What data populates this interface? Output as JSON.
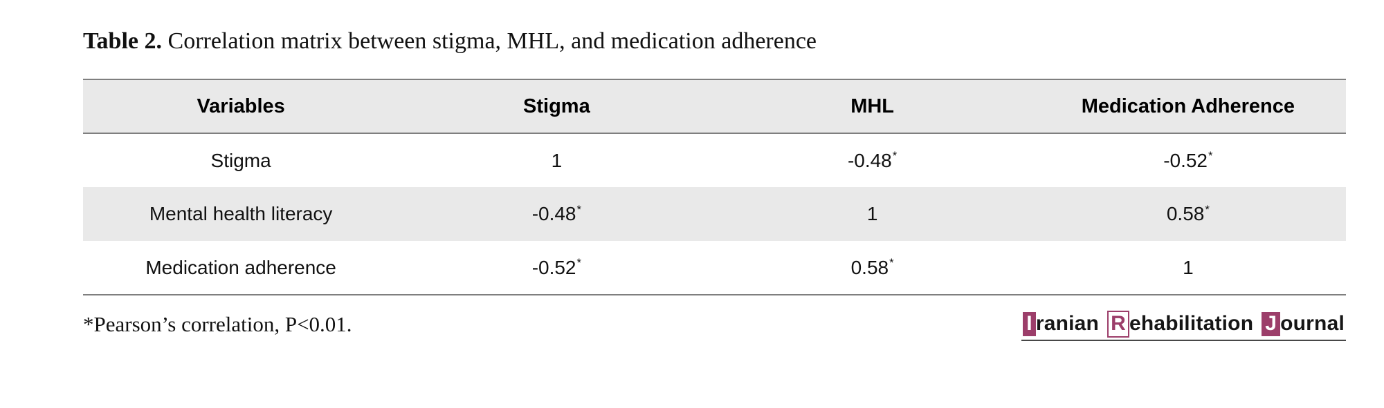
{
  "caption": {
    "label": "Table 2.",
    "text": "Correlation matrix between stigma, MHL, and medication adherence"
  },
  "table": {
    "columns": [
      "Variables",
      "Stigma",
      "MHL",
      "Medication Adherence"
    ],
    "rows": [
      {
        "label": "Stigma",
        "cells": [
          {
            "value": "1",
            "sup": ""
          },
          {
            "value": "-0.48",
            "sup": "*"
          },
          {
            "value": "-0.52",
            "sup": "*"
          }
        ]
      },
      {
        "label": "Mental health literacy",
        "cells": [
          {
            "value": "-0.48",
            "sup": "*"
          },
          {
            "value": "1",
            "sup": ""
          },
          {
            "value": "0.58",
            "sup": "*"
          }
        ]
      },
      {
        "label": "Medication adherence",
        "cells": [
          {
            "value": "-0.52",
            "sup": "*"
          },
          {
            "value": "0.58",
            "sup": "*"
          },
          {
            "value": "1",
            "sup": ""
          }
        ]
      }
    ],
    "stripe_color": "#e9e9e9",
    "border_color": "#7f7f7f"
  },
  "footnote": "*Pearson’s correlation, P<0.01.",
  "logo": {
    "segments": [
      {
        "text": "I",
        "style": "box-filled"
      },
      {
        "text": "ranian",
        "style": "plain"
      },
      {
        "text": "R",
        "style": "box-outline"
      },
      {
        "text": "ehabilitation",
        "style": "plain"
      },
      {
        "text": "J",
        "style": "box-filled"
      },
      {
        "text": "ournal",
        "style": "plain"
      }
    ],
    "accent_color": "#9c3e6a",
    "underline_color": "#474747"
  }
}
